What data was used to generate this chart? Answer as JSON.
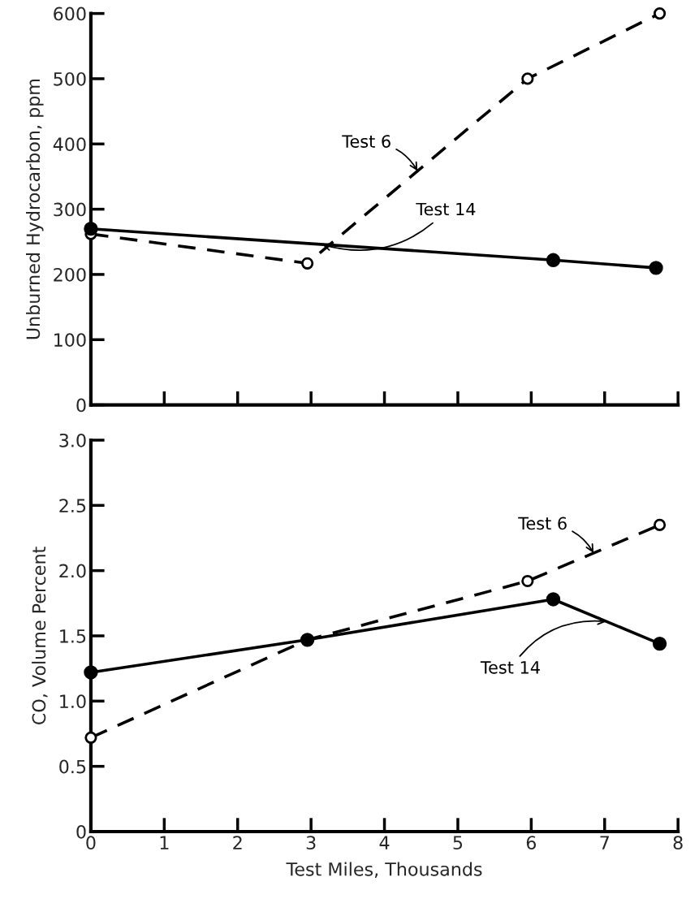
{
  "chart_data": [
    {
      "type": "line",
      "ylabel": "Unburned Hydrocarbon, ppm",
      "xlim": [
        0,
        8
      ],
      "xticks": [
        0,
        1,
        2,
        3,
        4,
        5,
        6,
        7,
        8
      ],
      "ylim": [
        0,
        600
      ],
      "yticks": [
        0,
        100,
        200,
        300,
        400,
        500,
        600
      ],
      "tick_labels": "y",
      "grid": false,
      "legend": false,
      "series": [
        {
          "name": "Test 6",
          "color": "#000000",
          "line_style": "dashed",
          "marker": "circle",
          "x": [
            0,
            2.95,
            5.95,
            7.75
          ],
          "values": [
            262,
            217,
            500,
            600
          ]
        },
        {
          "name": "Test 14",
          "color": "#000000",
          "line_style": "solid",
          "marker": "circle",
          "x": [
            0,
            6.3,
            7.7
          ],
          "values": [
            270,
            222,
            210
          ]
        }
      ]
    },
    {
      "type": "line",
      "xlabel": "Test Miles, Thousands",
      "ylabel": "CO, Volume Percent",
      "xlim": [
        0,
        8
      ],
      "xticks": [
        0,
        1,
        2,
        3,
        4,
        5,
        6,
        7,
        8
      ],
      "ylim": [
        0,
        3
      ],
      "yticks": [
        0,
        0.5,
        {
          "value": 1,
          "label": "1.0"
        },
        1.5,
        {
          "value": 2,
          "label": "2.0"
        },
        2.5,
        {
          "value": 3,
          "label": "3.0"
        }
      ],
      "grid": false,
      "legend": false,
      "series": [
        {
          "name": "Test 6",
          "color": "#000000",
          "line_style": "dashed",
          "marker": "circle",
          "x": [
            0,
            2.95,
            5.95,
            7.75
          ],
          "values": [
            0.72,
            1.47,
            1.92,
            2.35
          ]
        },
        {
          "name": "Test 14",
          "color": "#000000",
          "line_style": "solid",
          "marker": "circle",
          "x": [
            0,
            2.95,
            6.3,
            7.75
          ],
          "values": [
            1.22,
            1.47,
            1.78,
            1.44
          ]
        }
      ]
    }
  ]
}
